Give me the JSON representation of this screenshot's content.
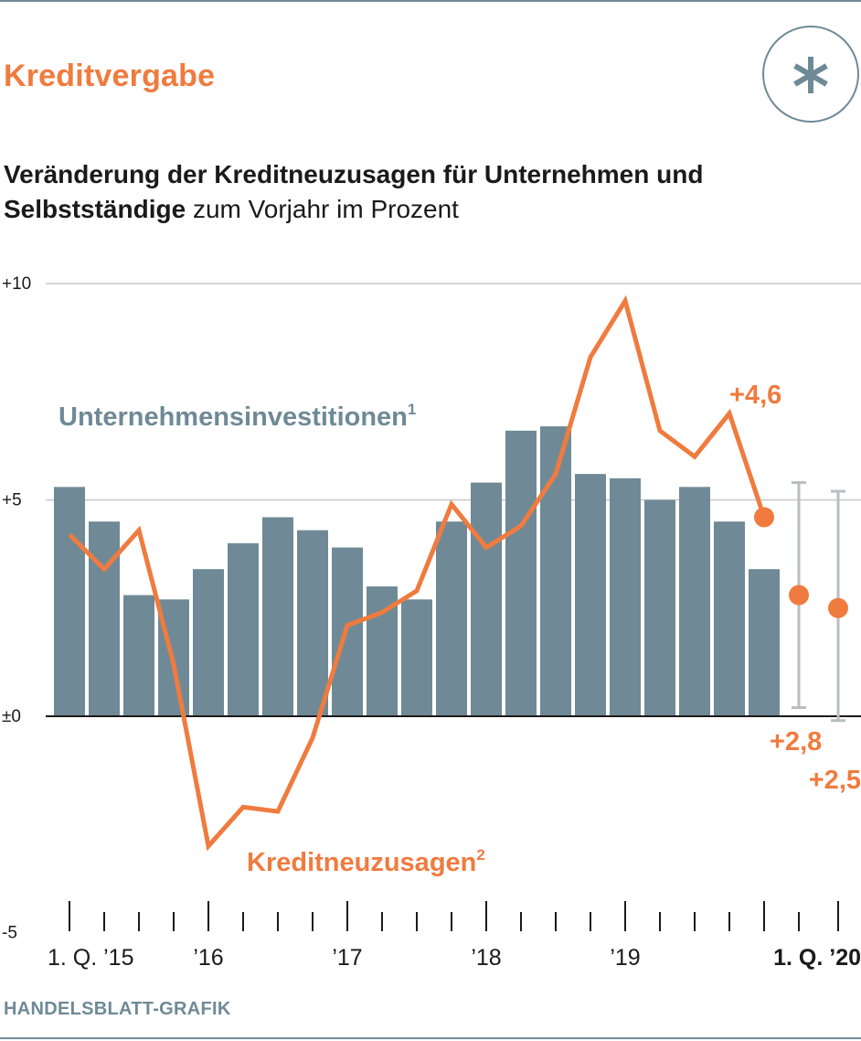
{
  "header": {
    "title": "Kreditvergabe",
    "subtitle_bold": "Veränderung der Kreditneuzusagen für Unternehmen und Selbstständige",
    "subtitle_regular": " zum Vorjahr im Prozent",
    "logo_icon": "asterisk-icon"
  },
  "footer": {
    "credit": "HANDELSBLATT-GRAFIK"
  },
  "colors": {
    "bars": "#6f8a96",
    "line": "#f07b3f",
    "grid": "#c8c8c8",
    "axis": "#1a1a1a",
    "range": "#b7bec2"
  },
  "chart_data": {
    "type": "bar",
    "ylim": [
      -5,
      10
    ],
    "y_ticks": [
      {
        "value": 10,
        "label": "+10"
      },
      {
        "value": 5,
        "label": "+5"
      },
      {
        "value": 0,
        "label": "±0"
      },
      {
        "value": -5,
        "label": "-5"
      }
    ],
    "quarters": [
      "Q1 2015",
      "Q2 2015",
      "Q3 2015",
      "Q4 2015",
      "Q1 2016",
      "Q2 2016",
      "Q3 2016",
      "Q4 2016",
      "Q1 2017",
      "Q2 2017",
      "Q3 2017",
      "Q4 2017",
      "Q1 2018",
      "Q2 2018",
      "Q3 2018",
      "Q4 2018",
      "Q1 2019",
      "Q2 2019",
      "Q3 2019",
      "Q4 2019",
      "Q1 2020"
    ],
    "x_labels": [
      {
        "index": 0,
        "label": "1. Q. ’15",
        "bold": false
      },
      {
        "index": 4,
        "label": "’16",
        "bold": false
      },
      {
        "index": 8,
        "label": "’17",
        "bold": false
      },
      {
        "index": 12,
        "label": "’18",
        "bold": false
      },
      {
        "index": 16,
        "label": "’19",
        "bold": false
      },
      {
        "index": 20,
        "label": "1. Q. ’20",
        "bold": true
      }
    ],
    "series": [
      {
        "name": "Unternehmensinvestitionen",
        "superscript": "1",
        "type": "bar",
        "values": [
          5.3,
          4.5,
          2.8,
          2.7,
          3.4,
          4.0,
          4.6,
          4.3,
          3.9,
          3.0,
          2.7,
          4.5,
          5.4,
          6.6,
          6.7,
          5.6,
          5.5,
          5.0,
          5.3,
          4.5,
          3.4
        ]
      },
      {
        "name": "Kreditneuzusagen",
        "superscript": "2",
        "type": "line",
        "values": [
          4.2,
          3.4,
          4.3,
          1.2,
          -3.0,
          -2.1,
          -2.2,
          -0.5,
          2.1,
          2.4,
          2.9,
          4.9,
          3.9,
          4.4,
          5.6,
          8.3,
          9.6,
          6.6,
          6.0,
          7.0,
          4.6
        ]
      }
    ],
    "forecasts": [
      {
        "label": "+2,8",
        "value": 2.8,
        "range": [
          0.2,
          5.4
        ]
      },
      {
        "label": "+2,5",
        "value": 2.5,
        "range": [
          -0.1,
          5.2
        ]
      }
    ],
    "annotations": {
      "last_value_label": "+4,6"
    },
    "grid": true
  }
}
